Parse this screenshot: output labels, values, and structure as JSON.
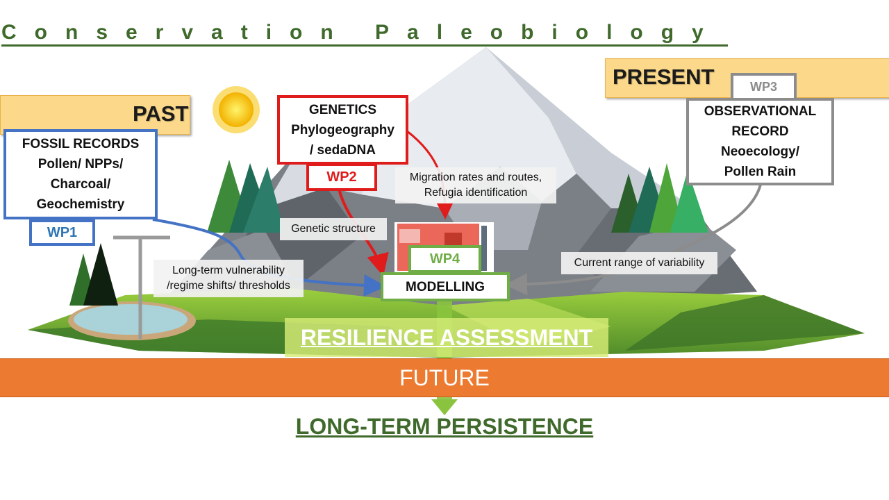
{
  "title": "Conservation Paleobiology",
  "eras": {
    "past": "PAST",
    "present": "PRESENT",
    "future": "FUTURE"
  },
  "boxes": {
    "fossil": "FOSSIL RECORDS\nPollen/ NPPs/\nCharcoal/\nGeochemistry",
    "genetics": "GENETICS\nPhylogeography\n/ sedaDNA",
    "observational": "OBSERVATIONAL\nRECORD\nNeoecology/\nPollen Rain",
    "modelling": "MODELLING"
  },
  "work_packages": {
    "wp1": "WP1",
    "wp2": "WP2",
    "wp3": "WP3",
    "wp4": "WP4"
  },
  "labels": {
    "migration": "Migration rates and routes,\nRefugia identification",
    "genetic_structure": "Genetic structure",
    "vulnerability": "Long-term vulnerability\n/regime shifts/ thresholds",
    "variability": "Current range of variability"
  },
  "resilience": "RESILIENCE ASSESSMENT",
  "outcome": "LONG-TERM PERSISTENCE",
  "colors": {
    "wp1": "#4472c4",
    "wp1_text": "#2e75b6",
    "wp2": "#e01b1b",
    "wp3": "#8c8c8c",
    "wp4": "#70ad47",
    "title": "#3f6a2c",
    "future": "#ec7a31",
    "era": "#fbd88a"
  },
  "icons": [
    "sun-icon",
    "mountain-illustration",
    "conifer-tree-icon",
    "lake-icon",
    "sediment-corer-icon",
    "climate-map-thumbnail"
  ]
}
